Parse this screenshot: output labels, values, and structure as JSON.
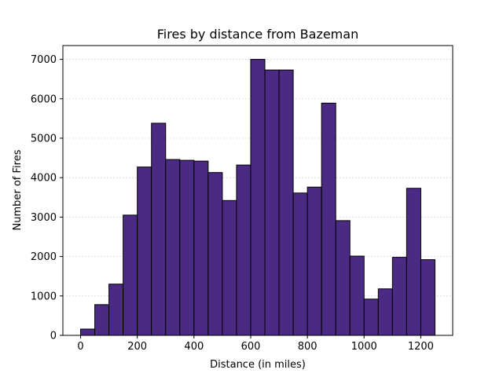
{
  "chart_data": {
    "type": "bar",
    "title": "Fires by distance from Bazeman",
    "xlabel": "Distance (in miles)",
    "ylabel": "Number of Fires",
    "bin_edges": [
      0,
      50,
      100,
      150,
      200,
      250,
      300,
      350,
      400,
      450,
      500,
      550,
      600,
      650,
      700,
      750,
      800,
      850,
      900,
      950,
      1000,
      1050,
      1100,
      1150,
      1200,
      1250
    ],
    "values": [
      160,
      780,
      1300,
      3050,
      4270,
      5380,
      4460,
      4440,
      4420,
      4130,
      3420,
      4320,
      7000,
      6730,
      6730,
      3610,
      3760,
      5890,
      2910,
      2010,
      920,
      1180,
      1980,
      3730,
      1920
    ],
    "xlim": [
      -62.5,
      1312.5
    ],
    "ylim": [
      0,
      7350
    ],
    "x_ticks": [
      0,
      200,
      400,
      600,
      800,
      1000,
      1200
    ],
    "y_ticks": [
      0,
      1000,
      2000,
      3000,
      4000,
      5000,
      6000,
      7000
    ],
    "grid": "y-dotted",
    "legend": "none",
    "colors": {
      "bar_fill": "#4b2a83",
      "bar_edge": "#000000",
      "grid": "#cccccc"
    }
  }
}
